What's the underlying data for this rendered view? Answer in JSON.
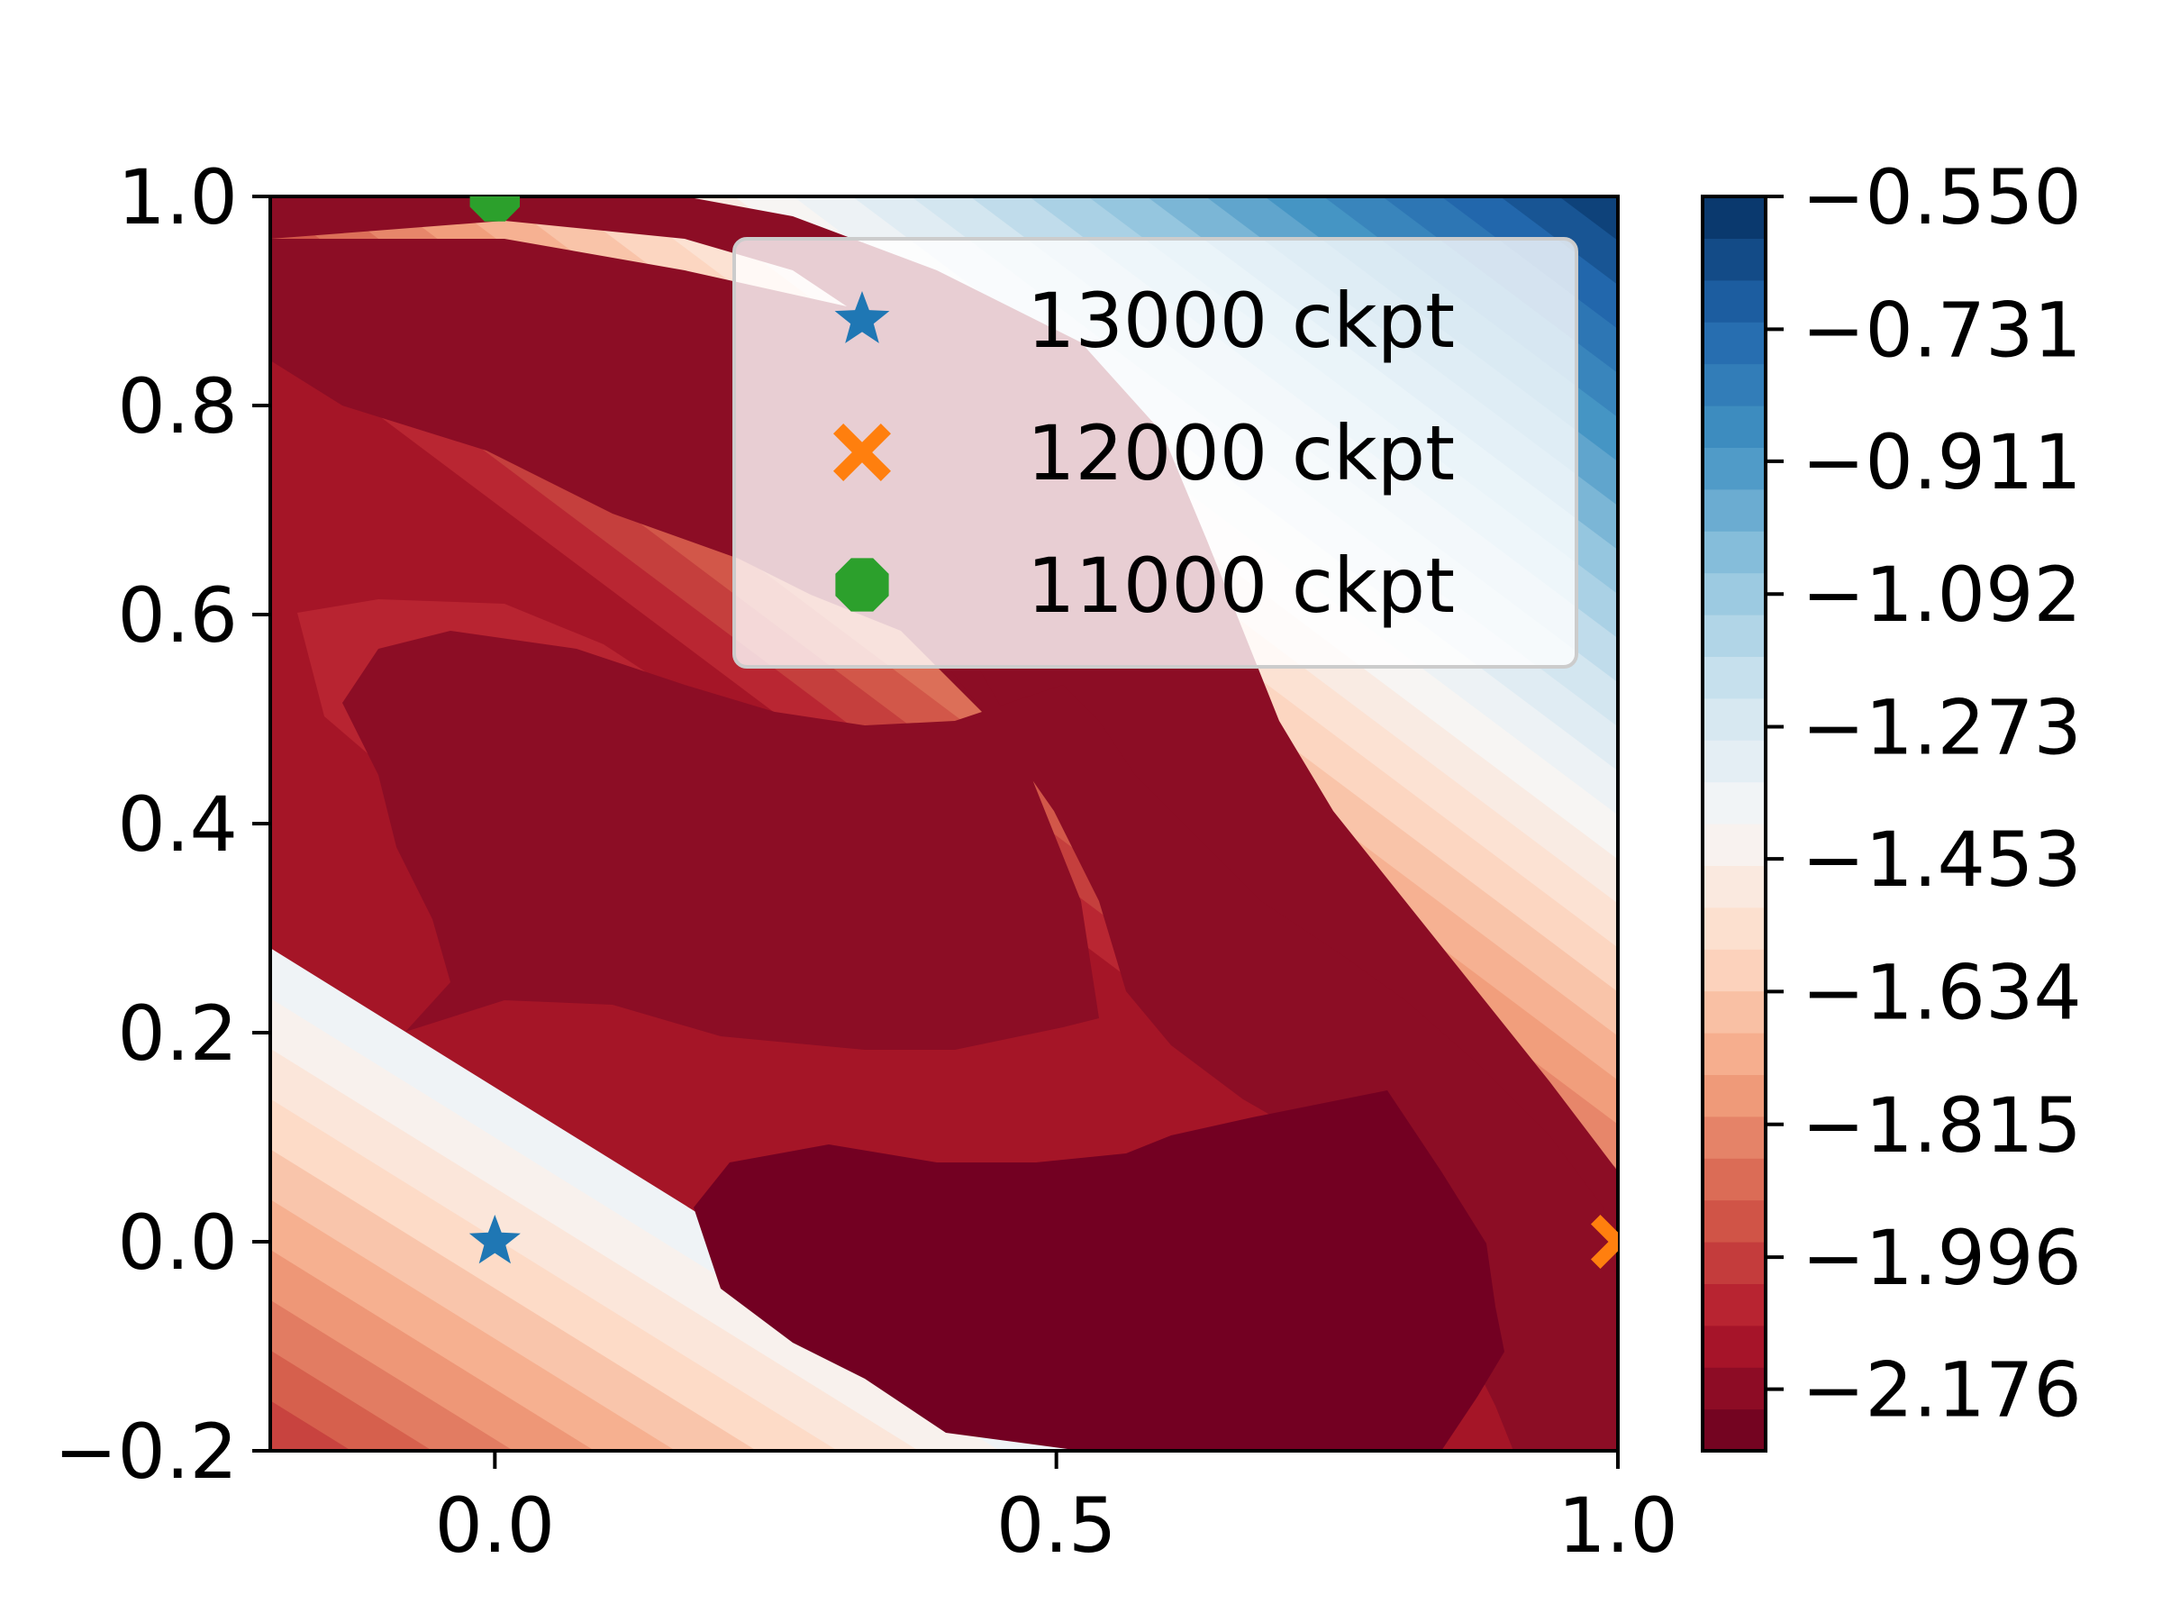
{
  "chart_data": {
    "type": "contour",
    "xlim": [
      -0.2,
      1.0
    ],
    "ylim": [
      -0.2,
      1.0
    ],
    "x_ticks": [
      {
        "value": 0.0,
        "label": "0.0"
      },
      {
        "value": 0.5,
        "label": "0.5"
      },
      {
        "value": 1.0,
        "label": "1.0"
      }
    ],
    "y_ticks": [
      {
        "value": -0.2,
        "label": "−0.2"
      },
      {
        "value": 0.0,
        "label": "0.0"
      },
      {
        "value": 0.2,
        "label": "0.2"
      },
      {
        "value": 0.4,
        "label": "0.4"
      },
      {
        "value": 0.6,
        "label": "0.6"
      },
      {
        "value": 0.8,
        "label": "0.8"
      },
      {
        "value": 1.0,
        "label": "1.0"
      }
    ],
    "colorbar": {
      "colormap": "RdBu",
      "range": [
        -2.26,
        -0.55
      ],
      "levels": 30,
      "ticks": [
        {
          "value": -0.55,
          "label": "−0.550"
        },
        {
          "value": -0.731,
          "label": "−0.731"
        },
        {
          "value": -0.911,
          "label": "−0.911"
        },
        {
          "value": -1.092,
          "label": "−1.092"
        },
        {
          "value": -1.273,
          "label": "−1.273"
        },
        {
          "value": -1.453,
          "label": "−1.453"
        },
        {
          "value": -1.634,
          "label": "−1.634"
        },
        {
          "value": -1.815,
          "label": "−1.815"
        },
        {
          "value": -1.996,
          "label": "−1.996"
        },
        {
          "value": -2.176,
          "label": "−2.176"
        }
      ]
    },
    "markers": [
      {
        "name": "13000 ckpt",
        "x": 0.0,
        "y": 0.0,
        "marker": "star",
        "color": "#1f77b4"
      },
      {
        "name": "12000 ckpt",
        "x": 1.0,
        "y": 0.0,
        "marker": "x-filled",
        "color": "#ff7f0e"
      },
      {
        "name": "11000 ckpt",
        "x": 0.0,
        "y": 1.0,
        "marker": "octagon",
        "color": "#2ca02c"
      }
    ],
    "legend_position": "upper-right"
  }
}
